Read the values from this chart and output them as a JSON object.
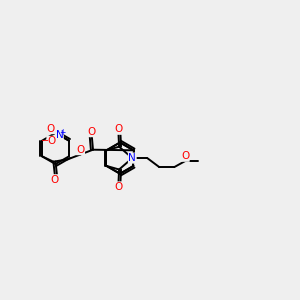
{
  "bg_color": "#efefef",
  "bond_color": "#000000",
  "O_color": "#ff0000",
  "N_color": "#0000ff",
  "lw": 1.4,
  "fs": 7.5,
  "xlim": [
    0,
    10
  ],
  "ylim": [
    2,
    8
  ]
}
